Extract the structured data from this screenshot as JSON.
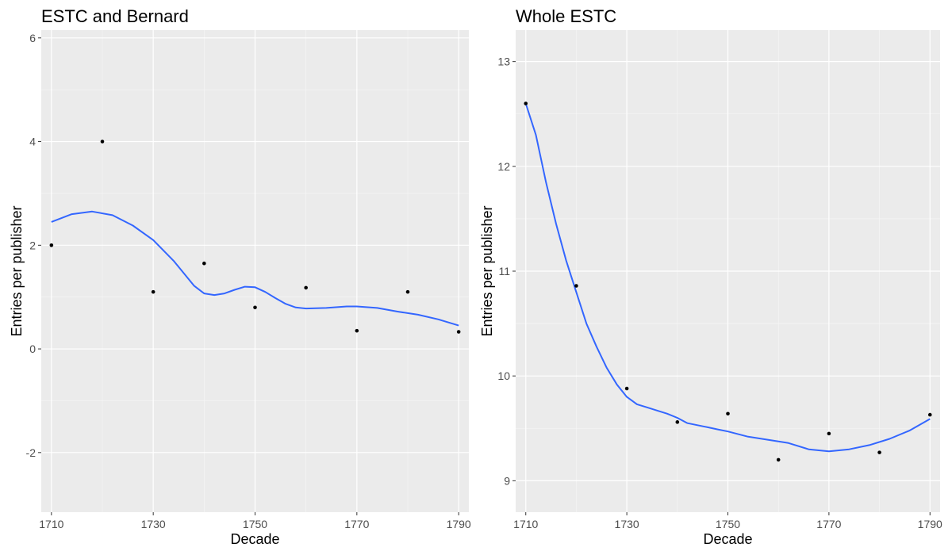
{
  "chart_data": [
    {
      "type": "scatter",
      "title": "ESTC and Bernard",
      "xlabel": "Decade",
      "ylabel": "Entries per publisher",
      "xlim": [
        1708,
        1792
      ],
      "ylim": [
        -3.15,
        6.15
      ],
      "x_ticks": [
        1710,
        1730,
        1750,
        1770,
        1790
      ],
      "y_ticks": [
        -2,
        0,
        2,
        4,
        6
      ],
      "grid": true,
      "points": {
        "x": [
          1710,
          1720,
          1730,
          1740,
          1750,
          1760,
          1770,
          1780,
          1790
        ],
        "y": [
          2.0,
          4.0,
          1.1,
          1.65,
          0.8,
          1.18,
          0.35,
          1.1,
          0.33
        ]
      },
      "smooth": {
        "x": [
          1710,
          1714,
          1718,
          1722,
          1726,
          1730,
          1734,
          1738,
          1740,
          1742,
          1744,
          1746,
          1748,
          1750,
          1752,
          1754,
          1756,
          1758,
          1760,
          1764,
          1768,
          1770,
          1774,
          1778,
          1782,
          1786,
          1790
        ],
        "y": [
          2.45,
          2.6,
          2.65,
          2.58,
          2.38,
          2.1,
          1.7,
          1.22,
          1.07,
          1.04,
          1.07,
          1.14,
          1.2,
          1.19,
          1.1,
          0.98,
          0.87,
          0.8,
          0.78,
          0.79,
          0.82,
          0.82,
          0.79,
          0.72,
          0.66,
          0.57,
          0.45
        ]
      }
    },
    {
      "type": "scatter",
      "title": "Whole ESTC",
      "xlabel": "Decade",
      "ylabel": "Entries per publisher",
      "xlim": [
        1708,
        1792
      ],
      "ylim": [
        8.7,
        13.3
      ],
      "x_ticks": [
        1710,
        1730,
        1750,
        1770,
        1790
      ],
      "y_ticks": [
        9,
        10,
        11,
        12,
        13
      ],
      "grid": true,
      "points": {
        "x": [
          1710,
          1720,
          1730,
          1740,
          1750,
          1760,
          1770,
          1780,
          1790
        ],
        "y": [
          12.6,
          10.86,
          9.88,
          9.56,
          9.64,
          9.2,
          9.45,
          9.27,
          9.63
        ]
      },
      "smooth": {
        "x": [
          1710,
          1712,
          1714,
          1716,
          1718,
          1720,
          1722,
          1724,
          1726,
          1728,
          1730,
          1732,
          1734,
          1736,
          1738,
          1740,
          1742,
          1744,
          1746,
          1748,
          1750,
          1754,
          1758,
          1762,
          1766,
          1770,
          1774,
          1778,
          1782,
          1786,
          1790
        ],
        "y": [
          12.6,
          12.3,
          11.85,
          11.45,
          11.1,
          10.8,
          10.5,
          10.28,
          10.08,
          9.92,
          9.8,
          9.73,
          9.7,
          9.67,
          9.64,
          9.6,
          9.55,
          9.53,
          9.51,
          9.49,
          9.47,
          9.42,
          9.39,
          9.36,
          9.3,
          9.28,
          9.3,
          9.34,
          9.4,
          9.48,
          9.59
        ]
      }
    }
  ]
}
